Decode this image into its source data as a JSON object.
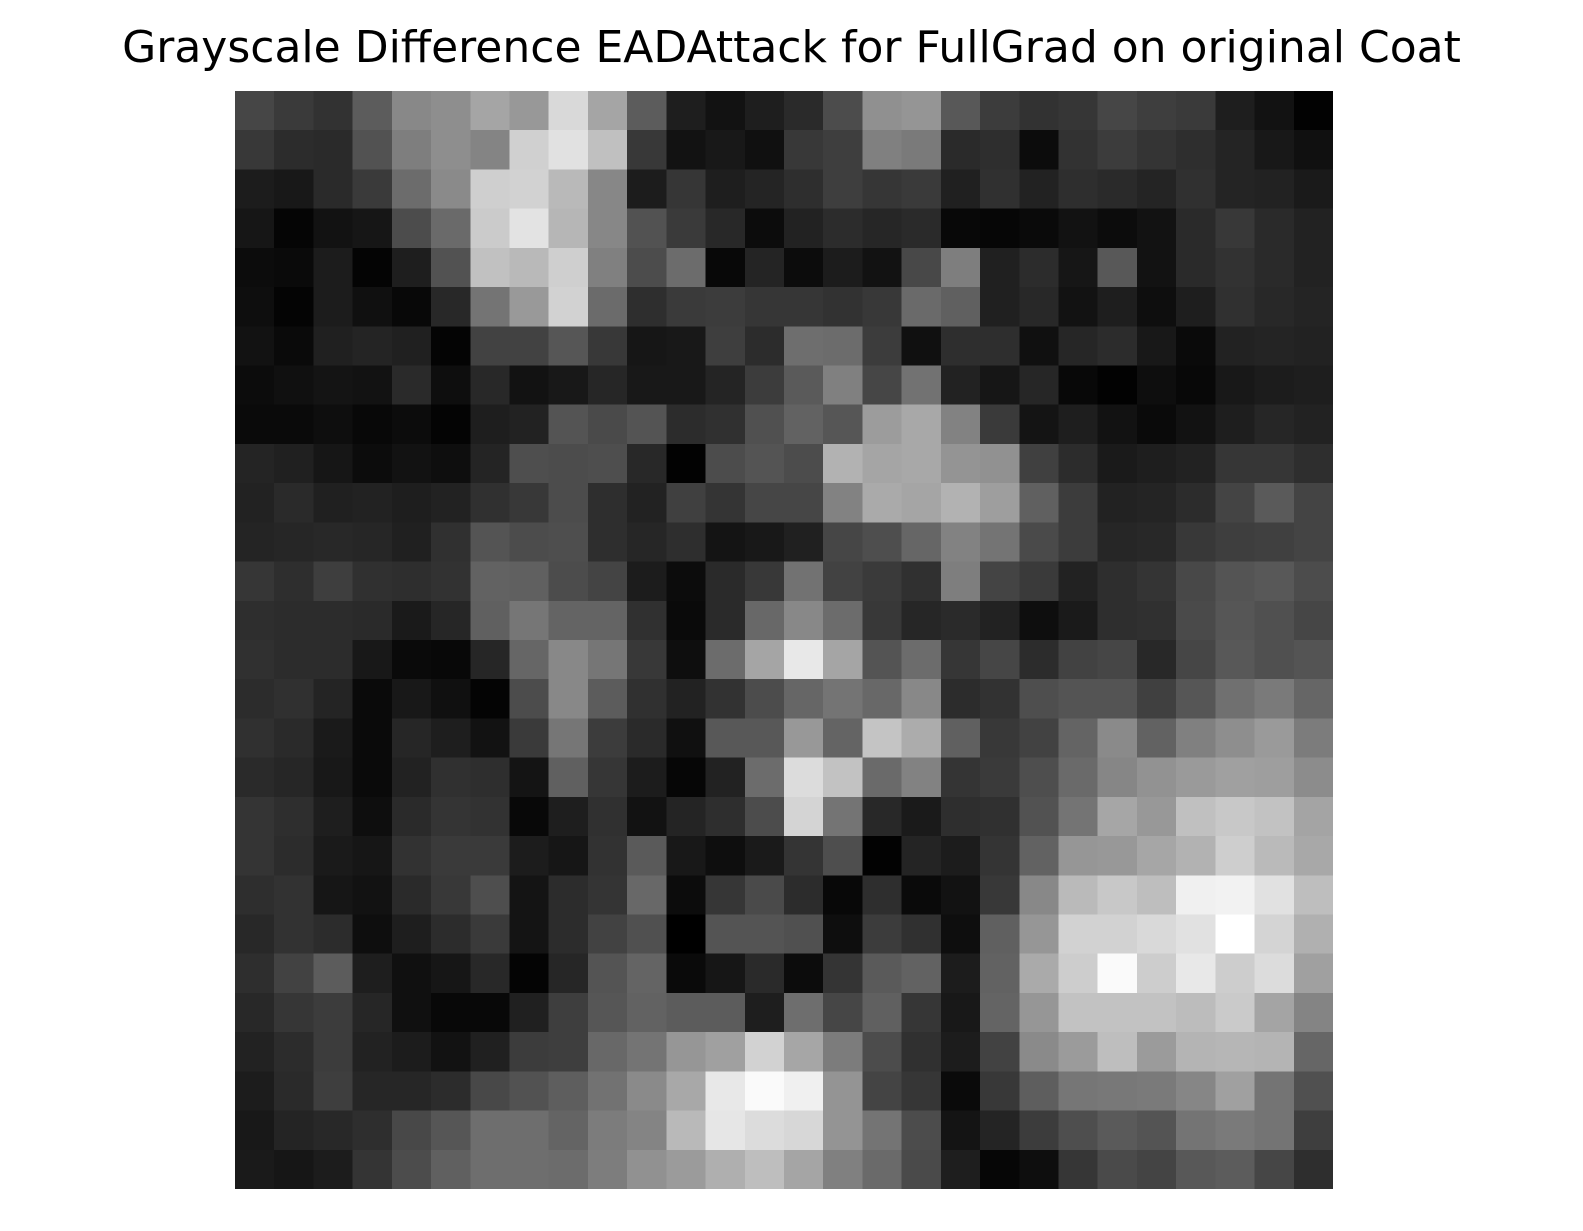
{
  "title": "Grayscale Difference EADAttack for FullGrad on original Coat",
  "chart_data": {
    "type": "heatmap",
    "title": "Grayscale Difference EADAttack for FullGrad on original Coat",
    "colormap": "gray",
    "axes_visible": false,
    "rows": 28,
    "cols": 28,
    "values": [
      [
        70,
        58,
        50,
        92,
        136,
        142,
        165,
        152,
        217,
        165,
        92,
        30,
        18,
        30,
        42,
        76,
        144,
        149,
        88,
        60,
        50,
        54,
        70,
        62,
        58,
        30,
        18,
        2
      ],
      [
        56,
        44,
        42,
        82,
        126,
        142,
        132,
        208,
        225,
        192,
        56,
        18,
        24,
        16,
        56,
        62,
        128,
        122,
        42,
        46,
        12,
        50,
        60,
        52,
        46,
        36,
        24,
        16
      ],
      [
        28,
        24,
        42,
        58,
        108,
        138,
        207,
        210,
        185,
        135,
        28,
        54,
        30,
        36,
        46,
        62,
        54,
        58,
        32,
        48,
        34,
        46,
        42,
        36,
        48,
        36,
        34,
        26
      ],
      [
        22,
        5,
        18,
        22,
        76,
        106,
        203,
        227,
        182,
        135,
        82,
        58,
        40,
        12,
        34,
        44,
        38,
        42,
        8,
        6,
        10,
        18,
        12,
        18,
        42,
        56,
        42,
        34
      ],
      [
        12,
        10,
        28,
        4,
        30,
        82,
        193,
        185,
        207,
        128,
        76,
        108,
        8,
        36,
        12,
        28,
        18,
        72,
        126,
        32,
        44,
        22,
        88,
        18,
        42,
        50,
        42,
        34
      ],
      [
        14,
        4,
        28,
        16,
        8,
        40,
        116,
        153,
        210,
        107,
        46,
        58,
        60,
        54,
        54,
        50,
        56,
        106,
        96,
        32,
        40,
        18,
        30,
        14,
        30,
        48,
        40,
        36
      ],
      [
        18,
        10,
        32,
        36,
        32,
        4,
        66,
        66,
        86,
        56,
        22,
        24,
        62,
        44,
        110,
        108,
        60,
        16,
        46,
        46,
        16,
        38,
        44,
        24,
        10,
        34,
        36,
        34
      ],
      [
        12,
        16,
        20,
        18,
        42,
        14,
        40,
        18,
        24,
        38,
        24,
        24,
        36,
        60,
        90,
        128,
        70,
        114,
        34,
        22,
        38,
        8,
        2,
        14,
        8,
        24,
        28,
        30
      ],
      [
        10,
        10,
        14,
        8,
        12,
        4,
        30,
        34,
        84,
        74,
        84,
        44,
        48,
        80,
        98,
        86,
        156,
        168,
        130,
        58,
        20,
        30,
        18,
        10,
        18,
        30,
        38,
        34
      ],
      [
        36,
        32,
        22,
        12,
        18,
        14,
        36,
        78,
        76,
        78,
        40,
        2,
        76,
        84,
        76,
        178,
        165,
        168,
        148,
        145,
        64,
        44,
        26,
        30,
        34,
        54,
        54,
        46
      ],
      [
        34,
        42,
        32,
        34,
        30,
        34,
        48,
        56,
        76,
        46,
        34,
        64,
        52,
        70,
        70,
        130,
        170,
        165,
        178,
        158,
        96,
        60,
        34,
        36,
        44,
        68,
        90,
        68
      ],
      [
        36,
        38,
        40,
        38,
        32,
        48,
        84,
        76,
        78,
        46,
        38,
        46,
        20,
        24,
        32,
        70,
        78,
        102,
        130,
        116,
        74,
        60,
        38,
        40,
        56,
        62,
        64,
        68
      ],
      [
        54,
        46,
        62,
        48,
        46,
        50,
        98,
        96,
        76,
        68,
        28,
        12,
        42,
        56,
        114,
        66,
        58,
        48,
        126,
        68,
        58,
        34,
        46,
        52,
        72,
        84,
        88,
        76
      ],
      [
        46,
        44,
        44,
        42,
        26,
        38,
        96,
        118,
        100,
        100,
        48,
        10,
        42,
        104,
        136,
        108,
        56,
        38,
        42,
        34,
        14,
        26,
        46,
        48,
        74,
        86,
        80,
        70
      ],
      [
        48,
        44,
        44,
        24,
        10,
        8,
        38,
        102,
        136,
        118,
        56,
        14,
        108,
        165,
        232,
        165,
        84,
        108,
        54,
        70,
        44,
        66,
        70,
        40,
        70,
        88,
        80,
        84
      ],
      [
        44,
        48,
        36,
        10,
        24,
        16,
        4,
        76,
        136,
        92,
        48,
        34,
        50,
        76,
        102,
        116,
        104,
        136,
        44,
        50,
        78,
        84,
        84,
        64,
        86,
        112,
        122,
        102
      ],
      [
        48,
        42,
        26,
        10,
        38,
        30,
        18,
        58,
        118,
        60,
        42,
        16,
        88,
        88,
        152,
        100,
        196,
        172,
        96,
        56,
        66,
        100,
        138,
        98,
        128,
        142,
        154,
        124
      ],
      [
        42,
        38,
        24,
        10,
        34,
        48,
        46,
        20,
        96,
        54,
        28,
        6,
        34,
        108,
        220,
        194,
        106,
        130,
        52,
        58,
        78,
        106,
        134,
        146,
        154,
        160,
        158,
        140
      ],
      [
        52,
        46,
        30,
        14,
        42,
        52,
        50,
        8,
        30,
        48,
        18,
        36,
        46,
        76,
        212,
        116,
        40,
        26,
        46,
        48,
        82,
        116,
        166,
        152,
        192,
        200,
        194,
        164
      ],
      [
        52,
        44,
        26,
        22,
        50,
        58,
        58,
        28,
        22,
        50,
        90,
        24,
        14,
        26,
        52,
        78,
        2,
        36,
        28,
        52,
        98,
        150,
        152,
        166,
        178,
        206,
        186,
        168
      ],
      [
        46,
        50,
        22,
        18,
        42,
        56,
        78,
        20,
        44,
        52,
        104,
        12,
        54,
        74,
        44,
        8,
        46,
        10,
        18,
        56,
        136,
        186,
        200,
        190,
        240,
        242,
        225,
        190
      ],
      [
        40,
        50,
        44,
        14,
        30,
        44,
        58,
        20,
        44,
        66,
        80,
        0,
        84,
        84,
        80,
        14,
        60,
        48,
        14,
        96,
        150,
        210,
        210,
        217,
        225,
        255,
        212,
        176
      ],
      [
        46,
        66,
        92,
        30,
        16,
        22,
        40,
        4,
        38,
        84,
        100,
        10,
        22,
        42,
        12,
        52,
        90,
        98,
        28,
        98,
        170,
        205,
        250,
        205,
        232,
        205,
        220,
        160
      ],
      [
        40,
        54,
        60,
        38,
        16,
        8,
        8,
        32,
        62,
        86,
        98,
        92,
        92,
        30,
        110,
        70,
        96,
        54,
        24,
        100,
        150,
        194,
        194,
        194,
        188,
        202,
        164,
        132
      ],
      [
        34,
        44,
        60,
        34,
        28,
        18,
        32,
        60,
        62,
        104,
        116,
        150,
        160,
        210,
        166,
        124,
        76,
        48,
        28,
        66,
        138,
        155,
        190,
        155,
        180,
        182,
        180,
        102
      ],
      [
        28,
        42,
        62,
        38,
        38,
        44,
        72,
        82,
        94,
        114,
        138,
        168,
        232,
        250,
        240,
        148,
        68,
        54,
        10,
        56,
        94,
        118,
        120,
        122,
        134,
        160,
        116,
        80
      ],
      [
        24,
        36,
        40,
        46,
        72,
        86,
        110,
        110,
        100,
        124,
        132,
        185,
        230,
        220,
        215,
        148,
        116,
        76,
        20,
        36,
        60,
        78,
        90,
        84,
        116,
        122,
        116,
        62
      ],
      [
        26,
        22,
        28,
        52,
        76,
        96,
        110,
        110,
        108,
        125,
        145,
        155,
        175,
        190,
        165,
        128,
        106,
        74,
        30,
        6,
        14,
        54,
        74,
        68,
        88,
        92,
        70,
        46
      ]
    ]
  }
}
